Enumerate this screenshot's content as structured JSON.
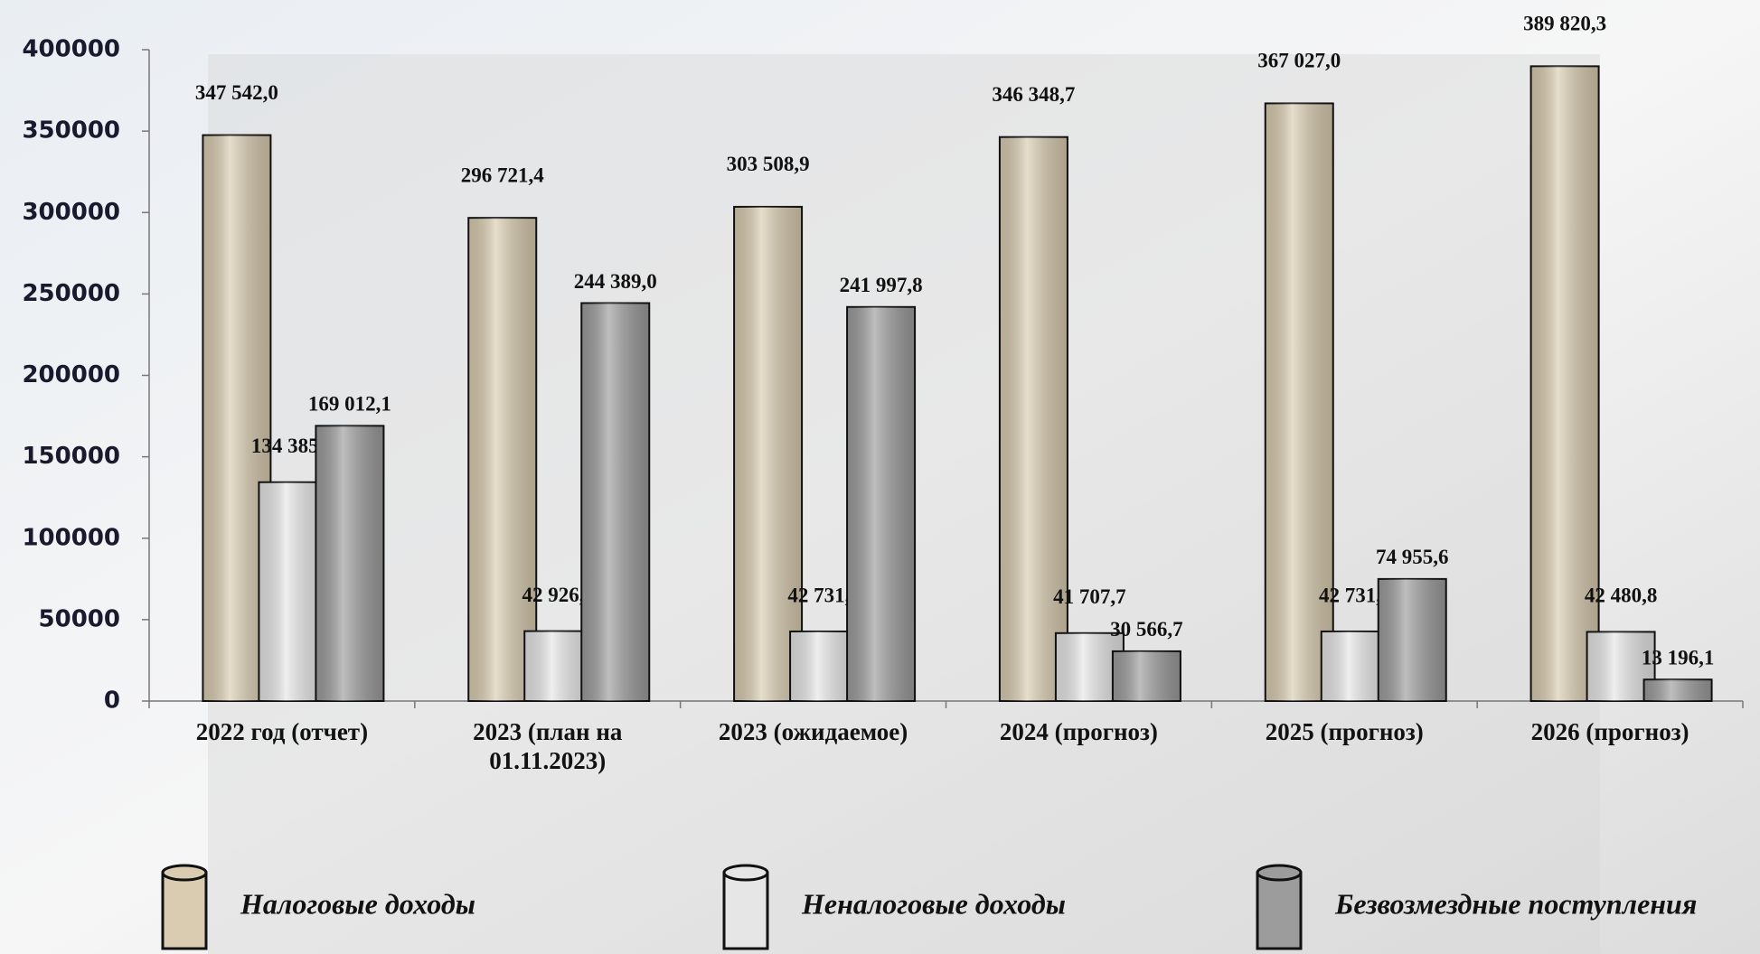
{
  "chart_data": {
    "type": "bar",
    "categories": [
      "2022 год (отчет)",
      "2023 (план на 01.11.2023)",
      "2023 (ожидаемое)",
      "2024 (прогноз)",
      "2025 (прогноз)",
      "2026 (прогноз)"
    ],
    "series": [
      {
        "name": "Налоговые доходы",
        "color": "#d9ccb0",
        "values": [
          347542.0,
          296721.4,
          303508.9,
          346348.7,
          367027.0,
          389820.3
        ],
        "value_labels": [
          "347 542,0",
          "296 721,4",
          "303 508,9",
          "346 348,7",
          "367 027,0",
          "389 820,3"
        ]
      },
      {
        "name": "Неналоговые доходы",
        "color": "#e6e6e6",
        "values": [
          134385.1,
          42926.8,
          42731.9,
          41707.7,
          42731.9,
          42480.8
        ],
        "value_labels": [
          "134 385,1",
          "42 926,8",
          "42 731,9",
          "41 707,7",
          "42 731,9",
          "42 480,8"
        ]
      },
      {
        "name": "Безвозмездные поступления",
        "color": "#9c9c9c",
        "values": [
          169012.1,
          244389.0,
          241997.8,
          30566.7,
          74955.6,
          13196.1
        ],
        "value_labels": [
          "169 012,1",
          "244 389,0",
          "241 997,8",
          "30 566,7",
          "74 955,6",
          "13 196,1"
        ]
      }
    ],
    "ylim": [
      0,
      400000
    ],
    "yticks": [
      0,
      50000,
      100000,
      150000,
      200000,
      250000,
      300000,
      350000,
      400000
    ]
  }
}
